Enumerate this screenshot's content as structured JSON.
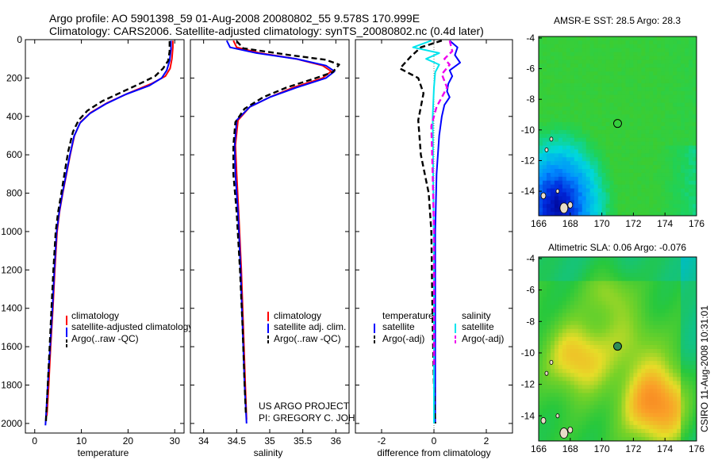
{
  "header": {
    "line1": "Argo profile: AO 5901398_59 01-Aug-2008 20080802_55 9.578S 170.999E",
    "line2": "Climatology: CARS2006. Satellite-adjusted climatology: synTS_20080802.nc (0.4d later)"
  },
  "colors": {
    "climatology": "#ff0000",
    "satellite": "#0000ff",
    "argo": "#000000",
    "sal_satellite": "#00e5ee",
    "sal_argo": "#ee00ee",
    "circle": "#000000"
  },
  "credits": {
    "project": "US ARGO PROJECT",
    "pi": "PI: GREGORY C. JOHNSON",
    "stamp": "CSIRO 11-Aug-2008 10:31:01"
  },
  "chart_data": [
    {
      "type": "line",
      "name": "temperature",
      "xlabel": "temperature",
      "ylabel": "",
      "xlim": [
        -2,
        32
      ],
      "ylim": [
        2050,
        0
      ],
      "xticks": [
        0,
        10,
        20,
        30
      ],
      "yticks": [
        0,
        200,
        400,
        600,
        800,
        1000,
        1200,
        1400,
        1600,
        1800,
        2000
      ],
      "legend": {
        "position": "bottom-right",
        "entries": [
          "climatology",
          "satellite-adjusted climatology",
          "Argo(..raw -QC)"
        ]
      },
      "series": [
        {
          "name": "climatology",
          "color_key": "climatology",
          "dash": false,
          "points": [
            [
              29.6,
              5
            ],
            [
              29.6,
              40
            ],
            [
              29.4,
              100
            ],
            [
              29.0,
              150
            ],
            [
              28.0,
              190
            ],
            [
              25.0,
              230
            ],
            [
              20.0,
              280
            ],
            [
              15.5,
              330
            ],
            [
              12.0,
              380
            ],
            [
              9.8,
              430
            ],
            [
              8.5,
              500
            ],
            [
              7.6,
              600
            ],
            [
              6.8,
              700
            ],
            [
              6.0,
              800
            ],
            [
              5.3,
              900
            ],
            [
              4.8,
              1000
            ],
            [
              4.3,
              1200
            ],
            [
              3.9,
              1400
            ],
            [
              3.4,
              1600
            ],
            [
              3.0,
              1800
            ],
            [
              2.6,
              1960
            ]
          ]
        },
        {
          "name": "satellite-adjusted climatology",
          "color_key": "satellite",
          "dash": false,
          "points": [
            [
              29.2,
              5
            ],
            [
              29.2,
              50
            ],
            [
              28.9,
              110
            ],
            [
              28.3,
              160
            ],
            [
              27.2,
              200
            ],
            [
              24.5,
              240
            ],
            [
              19.5,
              285
            ],
            [
              15.2,
              335
            ],
            [
              11.8,
              385
            ],
            [
              9.7,
              435
            ],
            [
              8.4,
              505
            ],
            [
              7.5,
              605
            ],
            [
              6.7,
              705
            ],
            [
              5.9,
              805
            ],
            [
              5.2,
              905
            ],
            [
              4.7,
              1000
            ],
            [
              4.2,
              1200
            ],
            [
              3.8,
              1400
            ],
            [
              3.3,
              1600
            ],
            [
              2.8,
              1800
            ],
            [
              2.3,
              2010
            ]
          ]
        },
        {
          "name": "Argo(..raw -QC)",
          "color_key": "argo",
          "dash": true,
          "points": [
            [
              28.9,
              8
            ],
            [
              28.9,
              60
            ],
            [
              28.6,
              110
            ],
            [
              27.5,
              150
            ],
            [
              25.8,
              190
            ],
            [
              22.5,
              230
            ],
            [
              18.5,
              275
            ],
            [
              14.5,
              320
            ],
            [
              11.3,
              370
            ],
            [
              9.4,
              420
            ],
            [
              8.2,
              480
            ],
            [
              7.2,
              580
            ],
            [
              6.5,
              680
            ],
            [
              5.7,
              800
            ],
            [
              5.0,
              900
            ],
            [
              4.5,
              1000
            ],
            [
              4.0,
              1200
            ],
            [
              3.6,
              1400
            ],
            [
              3.2,
              1600
            ],
            [
              2.8,
              1800
            ],
            [
              2.4,
              1990
            ]
          ]
        }
      ]
    },
    {
      "type": "line",
      "name": "salinity",
      "xlabel": "salinity",
      "xlim": [
        33.8,
        36.2
      ],
      "ylim": [
        2050,
        0
      ],
      "xticks": [
        34,
        34.5,
        35,
        35.5,
        36
      ],
      "legend": {
        "position": "bottom-right",
        "entries": [
          "climatology",
          "satellite adj. clim.",
          "Argo(..raw -QC)"
        ]
      },
      "series": [
        {
          "name": "climatology",
          "color_key": "climatology",
          "dash": false,
          "points": [
            [
              34.45,
              5
            ],
            [
              34.5,
              40
            ],
            [
              34.85,
              70
            ],
            [
              35.4,
              100
            ],
            [
              35.8,
              135
            ],
            [
              35.93,
              165
            ],
            [
              35.8,
              200
            ],
            [
              35.35,
              250
            ],
            [
              35.0,
              300
            ],
            [
              34.7,
              350
            ],
            [
              34.52,
              420
            ],
            [
              34.48,
              550
            ],
            [
              34.5,
              700
            ],
            [
              34.53,
              900
            ],
            [
              34.57,
              1200
            ],
            [
              34.6,
              1500
            ],
            [
              34.63,
              1800
            ],
            [
              34.65,
              1980
            ]
          ]
        },
        {
          "name": "satellite adj. clim.",
          "color_key": "satellite",
          "dash": false,
          "points": [
            [
              34.35,
              5
            ],
            [
              34.4,
              40
            ],
            [
              34.8,
              70
            ],
            [
              35.4,
              100
            ],
            [
              35.85,
              135
            ],
            [
              35.98,
              165
            ],
            [
              35.85,
              200
            ],
            [
              35.4,
              250
            ],
            [
              35.0,
              300
            ],
            [
              34.7,
              350
            ],
            [
              34.5,
              420
            ],
            [
              34.47,
              550
            ],
            [
              34.48,
              700
            ],
            [
              34.52,
              900
            ],
            [
              34.56,
              1200
            ],
            [
              34.59,
              1500
            ],
            [
              34.62,
              1800
            ],
            [
              34.65,
              2000
            ]
          ]
        },
        {
          "name": "Argo(..raw -QC)",
          "color_key": "argo",
          "dash": true,
          "points": [
            [
              34.5,
              8
            ],
            [
              34.6,
              45
            ],
            [
              35.3,
              80
            ],
            [
              35.85,
              105
            ],
            [
              36.05,
              130
            ],
            [
              35.95,
              170
            ],
            [
              35.7,
              200
            ],
            [
              35.25,
              250
            ],
            [
              34.9,
              300
            ],
            [
              34.62,
              360
            ],
            [
              34.48,
              430
            ],
            [
              34.45,
              550
            ],
            [
              34.45,
              700
            ],
            [
              34.5,
              900
            ],
            [
              34.55,
              1200
            ],
            [
              34.59,
              1500
            ],
            [
              34.62,
              1800
            ],
            [
              34.64,
              1960
            ]
          ]
        }
      ]
    },
    {
      "type": "line",
      "name": "difference from climatology",
      "xlabel": "difference from climatology",
      "xlim": [
        -3,
        3
      ],
      "ylim": [
        2050,
        0
      ],
      "xticks": [
        -2,
        0,
        2
      ],
      "legend": {
        "position": "bottom",
        "temperature_title": "temperature",
        "salinity_title": "salinity",
        "entries": [
          "satellite",
          "Argo(-adj)",
          "satellite",
          "Argo(-adj)"
        ]
      },
      "series": [
        {
          "name": "temperature satellite",
          "color_key": "satellite",
          "dash": false,
          "points": [
            [
              0.6,
              5
            ],
            [
              0.9,
              40
            ],
            [
              0.8,
              80
            ],
            [
              1.0,
              120
            ],
            [
              0.6,
              160
            ],
            [
              0.7,
              190
            ],
            [
              0.55,
              230
            ],
            [
              0.5,
              270
            ],
            [
              0.6,
              300
            ],
            [
              0.4,
              340
            ],
            [
              0.3,
              400
            ],
            [
              0.2,
              500
            ],
            [
              0.1,
              700
            ],
            [
              0.05,
              1000
            ],
            [
              0.05,
              1500
            ],
            [
              0.05,
              2000
            ]
          ]
        },
        {
          "name": "temperature Argo(-adj)",
          "color_key": "argo",
          "dash": true,
          "points": [
            [
              0.3,
              5
            ],
            [
              -0.5,
              40
            ],
            [
              -0.9,
              90
            ],
            [
              -1.3,
              150
            ],
            [
              -0.6,
              200
            ],
            [
              -0.4,
              280
            ],
            [
              -0.5,
              350
            ],
            [
              -0.6,
              420
            ],
            [
              -0.5,
              600
            ],
            [
              -0.2,
              800
            ],
            [
              -0.1,
              1000
            ],
            [
              -0.05,
              1500
            ],
            [
              0.0,
              1800
            ],
            [
              0.05,
              2000
            ]
          ]
        },
        {
          "name": "salinity satellite",
          "color_key": "sal_satellite",
          "dash": false,
          "points": [
            [
              -0.1,
              5
            ],
            [
              -0.8,
              40
            ],
            [
              0.2,
              70
            ],
            [
              -0.3,
              100
            ],
            [
              0.2,
              130
            ],
            [
              0.05,
              170
            ],
            [
              0.0,
              250
            ],
            [
              -0.05,
              400
            ],
            [
              -0.02,
              800
            ],
            [
              0.0,
              1200
            ],
            [
              0.0,
              2000
            ]
          ]
        },
        {
          "name": "salinity Argo(-adj)",
          "color_key": "sal_argo",
          "dash": true,
          "points": [
            [
              0.6,
              5
            ],
            [
              0.7,
              60
            ],
            [
              0.4,
              100
            ],
            [
              0.6,
              130
            ],
            [
              0.3,
              180
            ],
            [
              0.5,
              250
            ],
            [
              0.1,
              350
            ],
            [
              -0.1,
              450
            ],
            [
              -0.05,
              700
            ],
            [
              0.0,
              1000
            ],
            [
              0.0,
              1400
            ],
            [
              0.0,
              1700
            ]
          ]
        }
      ]
    },
    {
      "type": "heatmap",
      "name": "AMSR-E SST",
      "title": "AMSR-E SST: 28.5 Argo: 28.3",
      "xlim": [
        166,
        176
      ],
      "ylim": [
        -15.6,
        -3.9
      ],
      "xticks": [
        166,
        168,
        170,
        172,
        174,
        176
      ],
      "yticks": [
        -4,
        -6,
        -8,
        -10,
        -12,
        -14
      ],
      "profile_location": [
        170.999,
        -9.578
      ]
    },
    {
      "type": "heatmap",
      "name": "Altimetric SLA",
      "title": "Altimetric SLA: 0.06 Argo: -0.076",
      "xlim": [
        166,
        176
      ],
      "ylim": [
        -15.6,
        -3.9
      ],
      "xticks": [
        166,
        168,
        170,
        172,
        174,
        176
      ],
      "yticks": [
        -4,
        -6,
        -8,
        -10,
        -12,
        -14
      ],
      "profile_location": [
        170.999,
        -9.578
      ]
    }
  ]
}
